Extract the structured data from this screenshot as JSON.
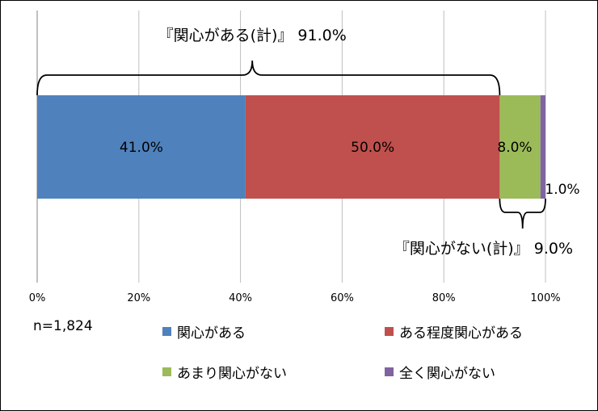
{
  "chart_data": {
    "type": "bar",
    "orientation": "horizontal",
    "stacked": true,
    "categories": [
      ""
    ],
    "series": [
      {
        "name": "関心がある",
        "values": [
          41.0
        ],
        "label": "41.0%",
        "color": "#4f81bd"
      },
      {
        "name": "ある程度関心がある",
        "values": [
          50.0
        ],
        "label": "50.0%",
        "color": "#c0504d"
      },
      {
        "name": "あまり関心がない",
        "values": [
          8.0
        ],
        "label": "8.0%",
        "color": "#9bbb59"
      },
      {
        "name": "全く関心がない",
        "values": [
          1.0
        ],
        "label": "1.0%",
        "color": "#8064a2"
      }
    ],
    "xlim": [
      0,
      100
    ],
    "x_ticks": [
      "0%",
      "20%",
      "40%",
      "60%",
      "80%",
      "100%"
    ],
    "grid": true,
    "legend_position": "bottom",
    "annotations": [
      {
        "text": "『関心がある(計)』 91.0%",
        "from": 0,
        "to": 91.0,
        "brace": "top"
      },
      {
        "text": "『関心がない(計)』 9.0%",
        "from": 91.0,
        "to": 100,
        "brace": "bottom"
      }
    ],
    "note": "n=1,824"
  }
}
